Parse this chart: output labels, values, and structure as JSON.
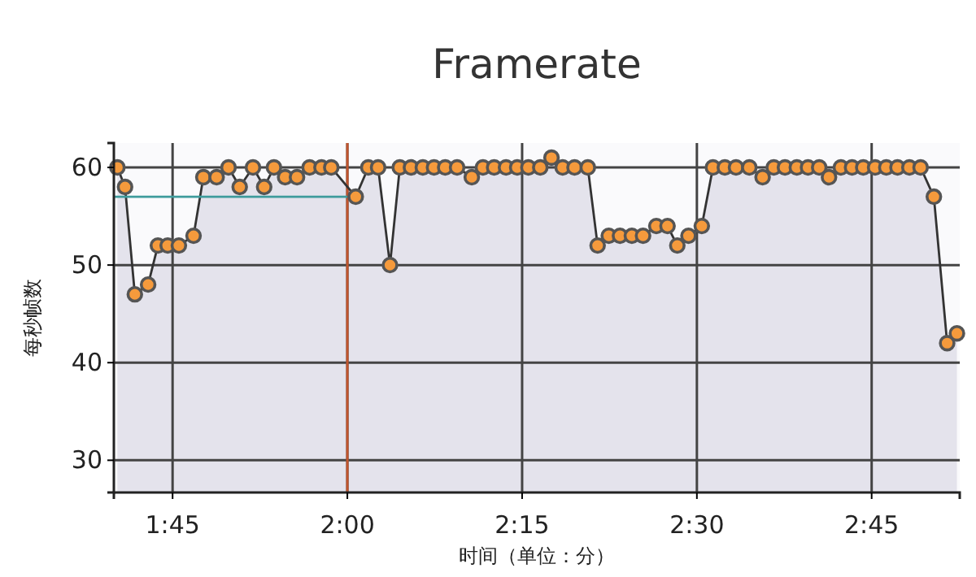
{
  "chart_data": {
    "type": "line",
    "title": "Framerate",
    "xlabel": "时间（单位：分）",
    "ylabel": "每秒帧数",
    "xlim": [
      1.666,
      2.876
    ],
    "xticks": [
      {
        "value": 1.75,
        "label": "1:45"
      },
      {
        "value": 2,
        "label": "2:00"
      },
      {
        "value": 2.25,
        "label": "2:15"
      },
      {
        "value": 2.5,
        "label": "2:30"
      },
      {
        "value": 2.75,
        "label": "2:45"
      }
    ],
    "ylim": [
      26.7,
      62.5
    ],
    "yticks": [
      30,
      40,
      50,
      60
    ],
    "grid": true,
    "marker": "circle",
    "series": [
      {
        "color": "#f59a3c",
        "x": [
          1.671,
          1.682,
          1.696,
          1.715,
          1.729,
          1.743,
          1.759,
          1.78,
          1.794,
          1.813,
          1.83,
          1.846,
          1.865,
          1.881,
          1.895,
          1.911,
          1.928,
          1.946,
          1.963,
          1.977,
          2.012,
          2.03,
          2.044,
          2.061,
          2.075,
          2.091,
          2.108,
          2.124,
          2.14,
          2.157,
          2.178,
          2.194,
          2.21,
          2.227,
          2.243,
          2.259,
          2.276,
          2.292,
          2.308,
          2.325,
          2.344,
          2.358,
          2.374,
          2.39,
          2.407,
          2.423,
          2.442,
          2.458,
          2.472,
          2.488,
          2.507,
          2.523,
          2.54,
          2.556,
          2.575,
          2.594,
          2.61,
          2.626,
          2.643,
          2.659,
          2.675,
          2.689,
          2.706,
          2.722,
          2.738,
          2.755,
          2.771,
          2.787,
          2.804,
          2.82,
          2.839,
          2.858,
          2.872
        ],
        "values": [
          60,
          58,
          47,
          48,
          52,
          52,
          52,
          53,
          59,
          59,
          60,
          58,
          60,
          58,
          60,
          59,
          59,
          60,
          60,
          60,
          57,
          60,
          60,
          50,
          60,
          60,
          60,
          60,
          60,
          60,
          59,
          60,
          60,
          60,
          60,
          60,
          60,
          61,
          60,
          60,
          60,
          52,
          53,
          53,
          53,
          53,
          54,
          54,
          52,
          53,
          54,
          60,
          60,
          60,
          60,
          59,
          60,
          60,
          60,
          60,
          60,
          59,
          60,
          60,
          60,
          60,
          60,
          60,
          60,
          60,
          57,
          42,
          43
        ]
      },
      {
        "type": "line",
        "color": "#3e9c9c",
        "marker": "none",
        "x": [
          1.666,
          2.0
        ],
        "values": [
          57,
          57
        ]
      }
    ],
    "ref_lines": [
      {
        "axis": "x",
        "value": 2.0,
        "color": "#c0552e"
      }
    ]
  }
}
